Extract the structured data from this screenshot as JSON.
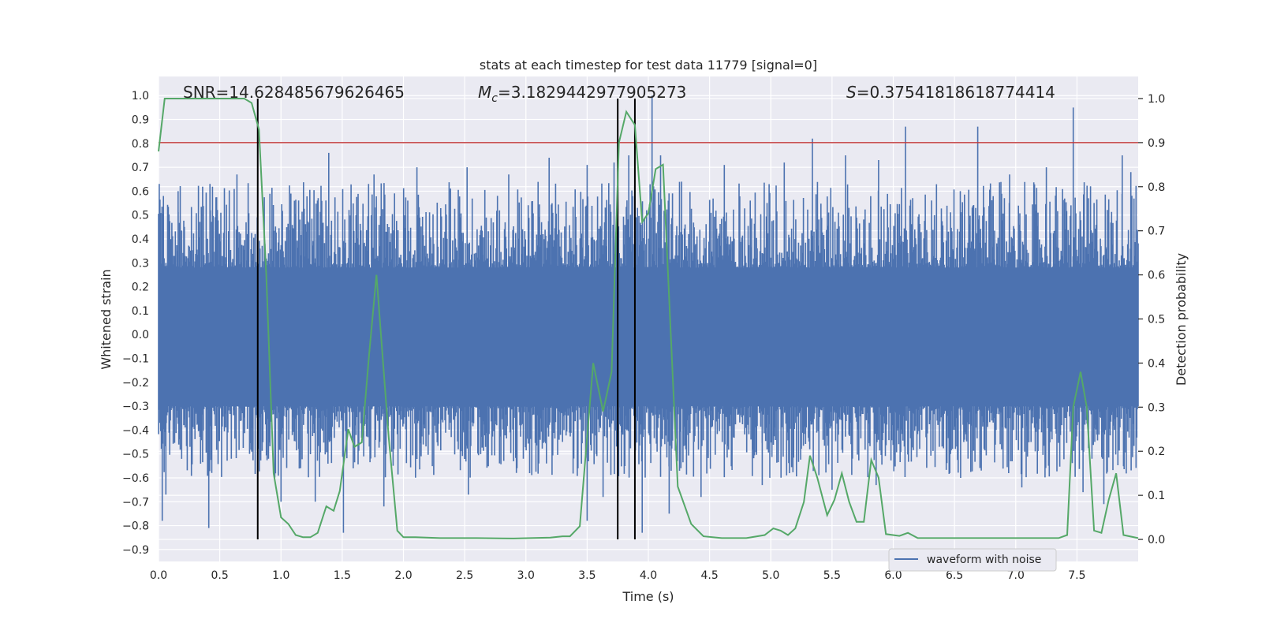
{
  "chart_data": {
    "type": "line",
    "title": "stats at each timestep for test data 11779 [signal=0]",
    "xlabel": "Time (s)",
    "ylabel_left": "Whitened strain",
    "ylabel_right": "Detection probability",
    "xlim": [
      0.0,
      8.0
    ],
    "ylim_left": [
      -0.95,
      1.08
    ],
    "ylim_right": [
      -0.05,
      1.05
    ],
    "x_ticks": [
      "0.0",
      "0.5",
      "1.0",
      "1.5",
      "2.0",
      "2.5",
      "3.0",
      "3.5",
      "4.0",
      "4.5",
      "5.0",
      "5.5",
      "6.0",
      "6.5",
      "7.0",
      "7.5"
    ],
    "y_left_ticks": [
      "-0.9",
      "-0.8",
      "-0.7",
      "-0.6",
      "-0.5",
      "-0.4",
      "-0.3",
      "-0.2",
      "-0.1",
      "0.0",
      "0.1",
      "0.2",
      "0.3",
      "0.4",
      "0.5",
      "0.6",
      "0.7",
      "0.8",
      "0.9",
      "1.0"
    ],
    "y_right_ticks": [
      "0.0",
      "0.1",
      "0.2",
      "0.3",
      "0.4",
      "0.5",
      "0.6",
      "0.7",
      "0.8",
      "0.9",
      "1.0"
    ],
    "grid": true,
    "annotations": {
      "snr": "SNR=14.628485679626465",
      "mc_prefix": "M",
      "mc_sub": "c",
      "mc_value": "=3.1829442977905273",
      "s_prefix": "S",
      "s_value": "=0.37541818618774414"
    },
    "threshold": {
      "axis": "right",
      "value": 0.9,
      "color": "#c03d3e"
    },
    "vertical_markers": [
      0.81,
      3.75,
      3.89
    ],
    "waveform": {
      "name": "waveform with noise",
      "color": "#4c72b0",
      "core_amplitude": 0.26,
      "peaks_positive": [
        [
          0.04,
          0.58
        ],
        [
          0.16,
          0.6
        ],
        [
          0.42,
          0.63
        ],
        [
          0.64,
          0.67
        ],
        [
          1.11,
          0.56
        ],
        [
          1.39,
          0.76
        ],
        [
          1.76,
          0.67
        ],
        [
          2.11,
          0.7
        ],
        [
          2.52,
          0.7
        ],
        [
          2.86,
          0.67
        ],
        [
          3.19,
          0.74
        ],
        [
          3.5,
          0.71
        ],
        [
          3.72,
          0.72
        ],
        [
          3.84,
          0.75
        ],
        [
          4.03,
          1.0
        ],
        [
          4.1,
          0.75
        ],
        [
          4.62,
          0.71
        ],
        [
          5.11,
          0.72
        ],
        [
          5.34,
          0.82
        ],
        [
          5.61,
          0.75
        ],
        [
          5.88,
          0.73
        ],
        [
          6.1,
          0.87
        ],
        [
          6.69,
          0.87
        ],
        [
          6.95,
          0.67
        ],
        [
          7.25,
          0.7
        ],
        [
          7.47,
          0.95
        ],
        [
          7.87,
          0.75
        ],
        [
          7.94,
          0.68
        ]
      ],
      "peaks_negative": [
        [
          0.03,
          -0.78
        ],
        [
          0.06,
          -0.67
        ],
        [
          0.41,
          -0.81
        ],
        [
          1.0,
          -0.7
        ],
        [
          1.28,
          -0.7
        ],
        [
          1.51,
          -0.83
        ],
        [
          1.84,
          -0.72
        ],
        [
          2.53,
          -0.67
        ],
        [
          3.5,
          -0.78
        ],
        [
          3.63,
          -0.68
        ],
        [
          3.95,
          -0.83
        ],
        [
          4.17,
          -0.75
        ],
        [
          4.43,
          -0.68
        ],
        [
          4.93,
          -0.63
        ],
        [
          5.5,
          -0.65
        ],
        [
          5.86,
          -0.63
        ],
        [
          6.55,
          -0.6
        ],
        [
          7.05,
          -0.64
        ],
        [
          7.55,
          -0.66
        ],
        [
          7.72,
          -0.71
        ]
      ]
    },
    "probability": {
      "color": "#55a868",
      "x": [
        0.0,
        0.05,
        0.12,
        0.2,
        0.3,
        0.4,
        0.5,
        0.6,
        0.7,
        0.76,
        0.82,
        0.88,
        0.94,
        1.0,
        1.06,
        1.12,
        1.18,
        1.24,
        1.3,
        1.37,
        1.43,
        1.48,
        1.55,
        1.6,
        1.66,
        1.72,
        1.78,
        1.82,
        1.88,
        1.95,
        2.0,
        2.1,
        2.3,
        2.6,
        2.9,
        3.2,
        3.3,
        3.36,
        3.44,
        3.55,
        3.63,
        3.7,
        3.76,
        3.82,
        3.89,
        3.95,
        4.0,
        4.06,
        4.12,
        4.24,
        4.35,
        4.45,
        4.6,
        4.8,
        4.95,
        5.02,
        5.08,
        5.14,
        5.2,
        5.27,
        5.32,
        5.38,
        5.46,
        5.52,
        5.58,
        5.64,
        5.7,
        5.76,
        5.82,
        5.88,
        5.94,
        6.05,
        6.12,
        6.2,
        6.5,
        7.0,
        7.35,
        7.42,
        7.47,
        7.53,
        7.58,
        7.64,
        7.7,
        7.76,
        7.82,
        7.88,
        8.0
      ],
      "y": [
        0.88,
        1.0,
        1.0,
        1.0,
        1.0,
        1.0,
        1.0,
        1.0,
        1.0,
        0.99,
        0.93,
        0.6,
        0.15,
        0.05,
        0.035,
        0.01,
        0.005,
        0.005,
        0.015,
        0.075,
        0.065,
        0.11,
        0.25,
        0.21,
        0.22,
        0.42,
        0.6,
        0.45,
        0.23,
        0.02,
        0.005,
        0.005,
        0.003,
        0.003,
        0.002,
        0.004,
        0.007,
        0.007,
        0.03,
        0.4,
        0.29,
        0.38,
        0.9,
        0.97,
        0.94,
        0.72,
        0.74,
        0.84,
        0.85,
        0.12,
        0.035,
        0.007,
        0.003,
        0.003,
        0.01,
        0.025,
        0.02,
        0.01,
        0.025,
        0.085,
        0.19,
        0.14,
        0.055,
        0.09,
        0.15,
        0.085,
        0.04,
        0.04,
        0.18,
        0.14,
        0.012,
        0.008,
        0.015,
        0.003,
        0.003,
        0.003,
        0.003,
        0.01,
        0.3,
        0.38,
        0.3,
        0.02,
        0.015,
        0.09,
        0.15,
        0.01,
        0.003
      ]
    },
    "legend": {
      "label": "waveform with noise",
      "placement": "lower-right"
    }
  }
}
